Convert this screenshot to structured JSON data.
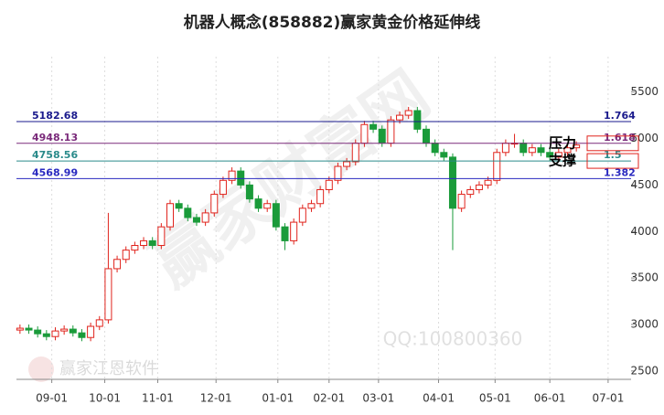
{
  "chart_data": {
    "type": "candlestick",
    "title": "机器人概念(858882)赢家黄金价格延伸线",
    "x": [
      2,
      7,
      12,
      17,
      22,
      27,
      32,
      37,
      42,
      47,
      52,
      57,
      62,
      67,
      72,
      77,
      82,
      87,
      92,
      97,
      102,
      107,
      112,
      117,
      122,
      127,
      132,
      137,
      142,
      147,
      152,
      157,
      162,
      167,
      172,
      177,
      182,
      187,
      192,
      197,
      202,
      207,
      212,
      217,
      222,
      227,
      232,
      237,
      242,
      247,
      252,
      257,
      262,
      267,
      272,
      277,
      282,
      287,
      292,
      297,
      302,
      307,
      312,
      317
    ],
    "open": [
      2940,
      2960,
      2940,
      2900,
      2870,
      2930,
      2950,
      2910,
      2860,
      2980,
      3050,
      3600,
      3700,
      3800,
      3850,
      3900,
      3850,
      4050,
      4300,
      4250,
      4150,
      4100,
      4200,
      4400,
      4550,
      4650,
      4500,
      4350,
      4250,
      4300,
      4050,
      3900,
      4100,
      4250,
      4300,
      4450,
      4550,
      4700,
      4750,
      4950,
      5150,
      5100,
      4950,
      5200,
      5250,
      5300,
      5100,
      4950,
      4850,
      4800,
      4250,
      4400,
      4450,
      4500,
      4550,
      4850,
      4950,
      4950,
      4850,
      4900,
      4850,
      4800,
      4850,
      4900
    ],
    "high": [
      3000,
      3000,
      2980,
      2940,
      2970,
      2990,
      2990,
      2950,
      3020,
      3090,
      4200,
      3740,
      3840,
      3890,
      3940,
      3940,
      4090,
      4340,
      4340,
      4290,
      4190,
      4240,
      4440,
      4590,
      4690,
      4690,
      4540,
      4390,
      4340,
      4340,
      4090,
      4140,
      4290,
      4340,
      4490,
      4590,
      4740,
      4790,
      4990,
      5190,
      5190,
      5140,
      5240,
      5290,
      5340,
      5340,
      5140,
      4990,
      4890,
      4840,
      4440,
      4490,
      4540,
      4590,
      4890,
      4990,
      5050,
      4990,
      4940,
      4940,
      4890,
      4890,
      4940,
      4970
    ],
    "low": [
      2900,
      2900,
      2860,
      2830,
      2830,
      2890,
      2870,
      2820,
      2820,
      2940,
      3010,
      3560,
      3660,
      3760,
      3810,
      3810,
      3810,
      4010,
      4210,
      4110,
      4060,
      4060,
      4160,
      4360,
      4510,
      4460,
      4310,
      4210,
      4210,
      4010,
      3800,
      3860,
      4060,
      4210,
      4260,
      4410,
      4510,
      4660,
      4710,
      4910,
      5060,
      4910,
      4910,
      5160,
      5210,
      5060,
      4910,
      4810,
      4760,
      3800,
      4210,
      4360,
      4410,
      4460,
      4510,
      4810,
      4900,
      4810,
      4810,
      4810,
      4760,
      4760,
      4810,
      4860
    ],
    "close": [
      2960,
      2940,
      2900,
      2870,
      2930,
      2950,
      2910,
      2860,
      2980,
      3050,
      3600,
      3700,
      3800,
      3850,
      3900,
      3850,
      4050,
      4300,
      4250,
      4150,
      4100,
      4200,
      4400,
      4550,
      4650,
      4500,
      4350,
      4250,
      4300,
      4050,
      3900,
      4100,
      4250,
      4300,
      4450,
      4550,
      4700,
      4750,
      4950,
      5150,
      5100,
      4950,
      5200,
      5250,
      5300,
      5100,
      4950,
      4850,
      4800,
      4250,
      4400,
      4450,
      4500,
      4550,
      4850,
      4950,
      4950,
      4850,
      4900,
      4850,
      4800,
      4850,
      4900,
      4930
    ],
    "up_color": "#e0231c",
    "down_color": "#1a9b3a",
    "xlim": [
      0,
      348
    ],
    "xticks": [
      {
        "value": 20,
        "label": "09-01"
      },
      {
        "value": 50,
        "label": "10-01"
      },
      {
        "value": 80,
        "label": "11-01"
      },
      {
        "value": 113,
        "label": "12-01"
      },
      {
        "value": 148,
        "label": "01-01"
      },
      {
        "value": 177,
        "label": "02-01"
      },
      {
        "value": 205,
        "label": "03-01"
      },
      {
        "value": 239,
        "label": "04-01"
      },
      {
        "value": 271,
        "label": "05-01"
      },
      {
        "value": 302,
        "label": "06-01"
      },
      {
        "value": 335,
        "label": "07-01"
      }
    ],
    "ylim": [
      2410,
      5880
    ],
    "yticks": [
      2500,
      3000,
      3500,
      4000,
      4500,
      5000,
      5500
    ],
    "levels": [
      {
        "value": 5182.68,
        "ratio": 1.764,
        "color": "#1a1a8c"
      },
      {
        "value": 4948.13,
        "ratio": 1.618,
        "color": "#7a2a7a"
      },
      {
        "value": 4758.56,
        "ratio": 1.5,
        "color": "#2a8a8a"
      },
      {
        "value": 4568.99,
        "ratio": 1.382,
        "color": "#2a2ac0"
      }
    ],
    "resistance_label": "压力",
    "support_label": "支撑",
    "watermarks": [
      "赢家财富网",
      "QQ:100800360",
      "赢家江恩软件"
    ]
  }
}
